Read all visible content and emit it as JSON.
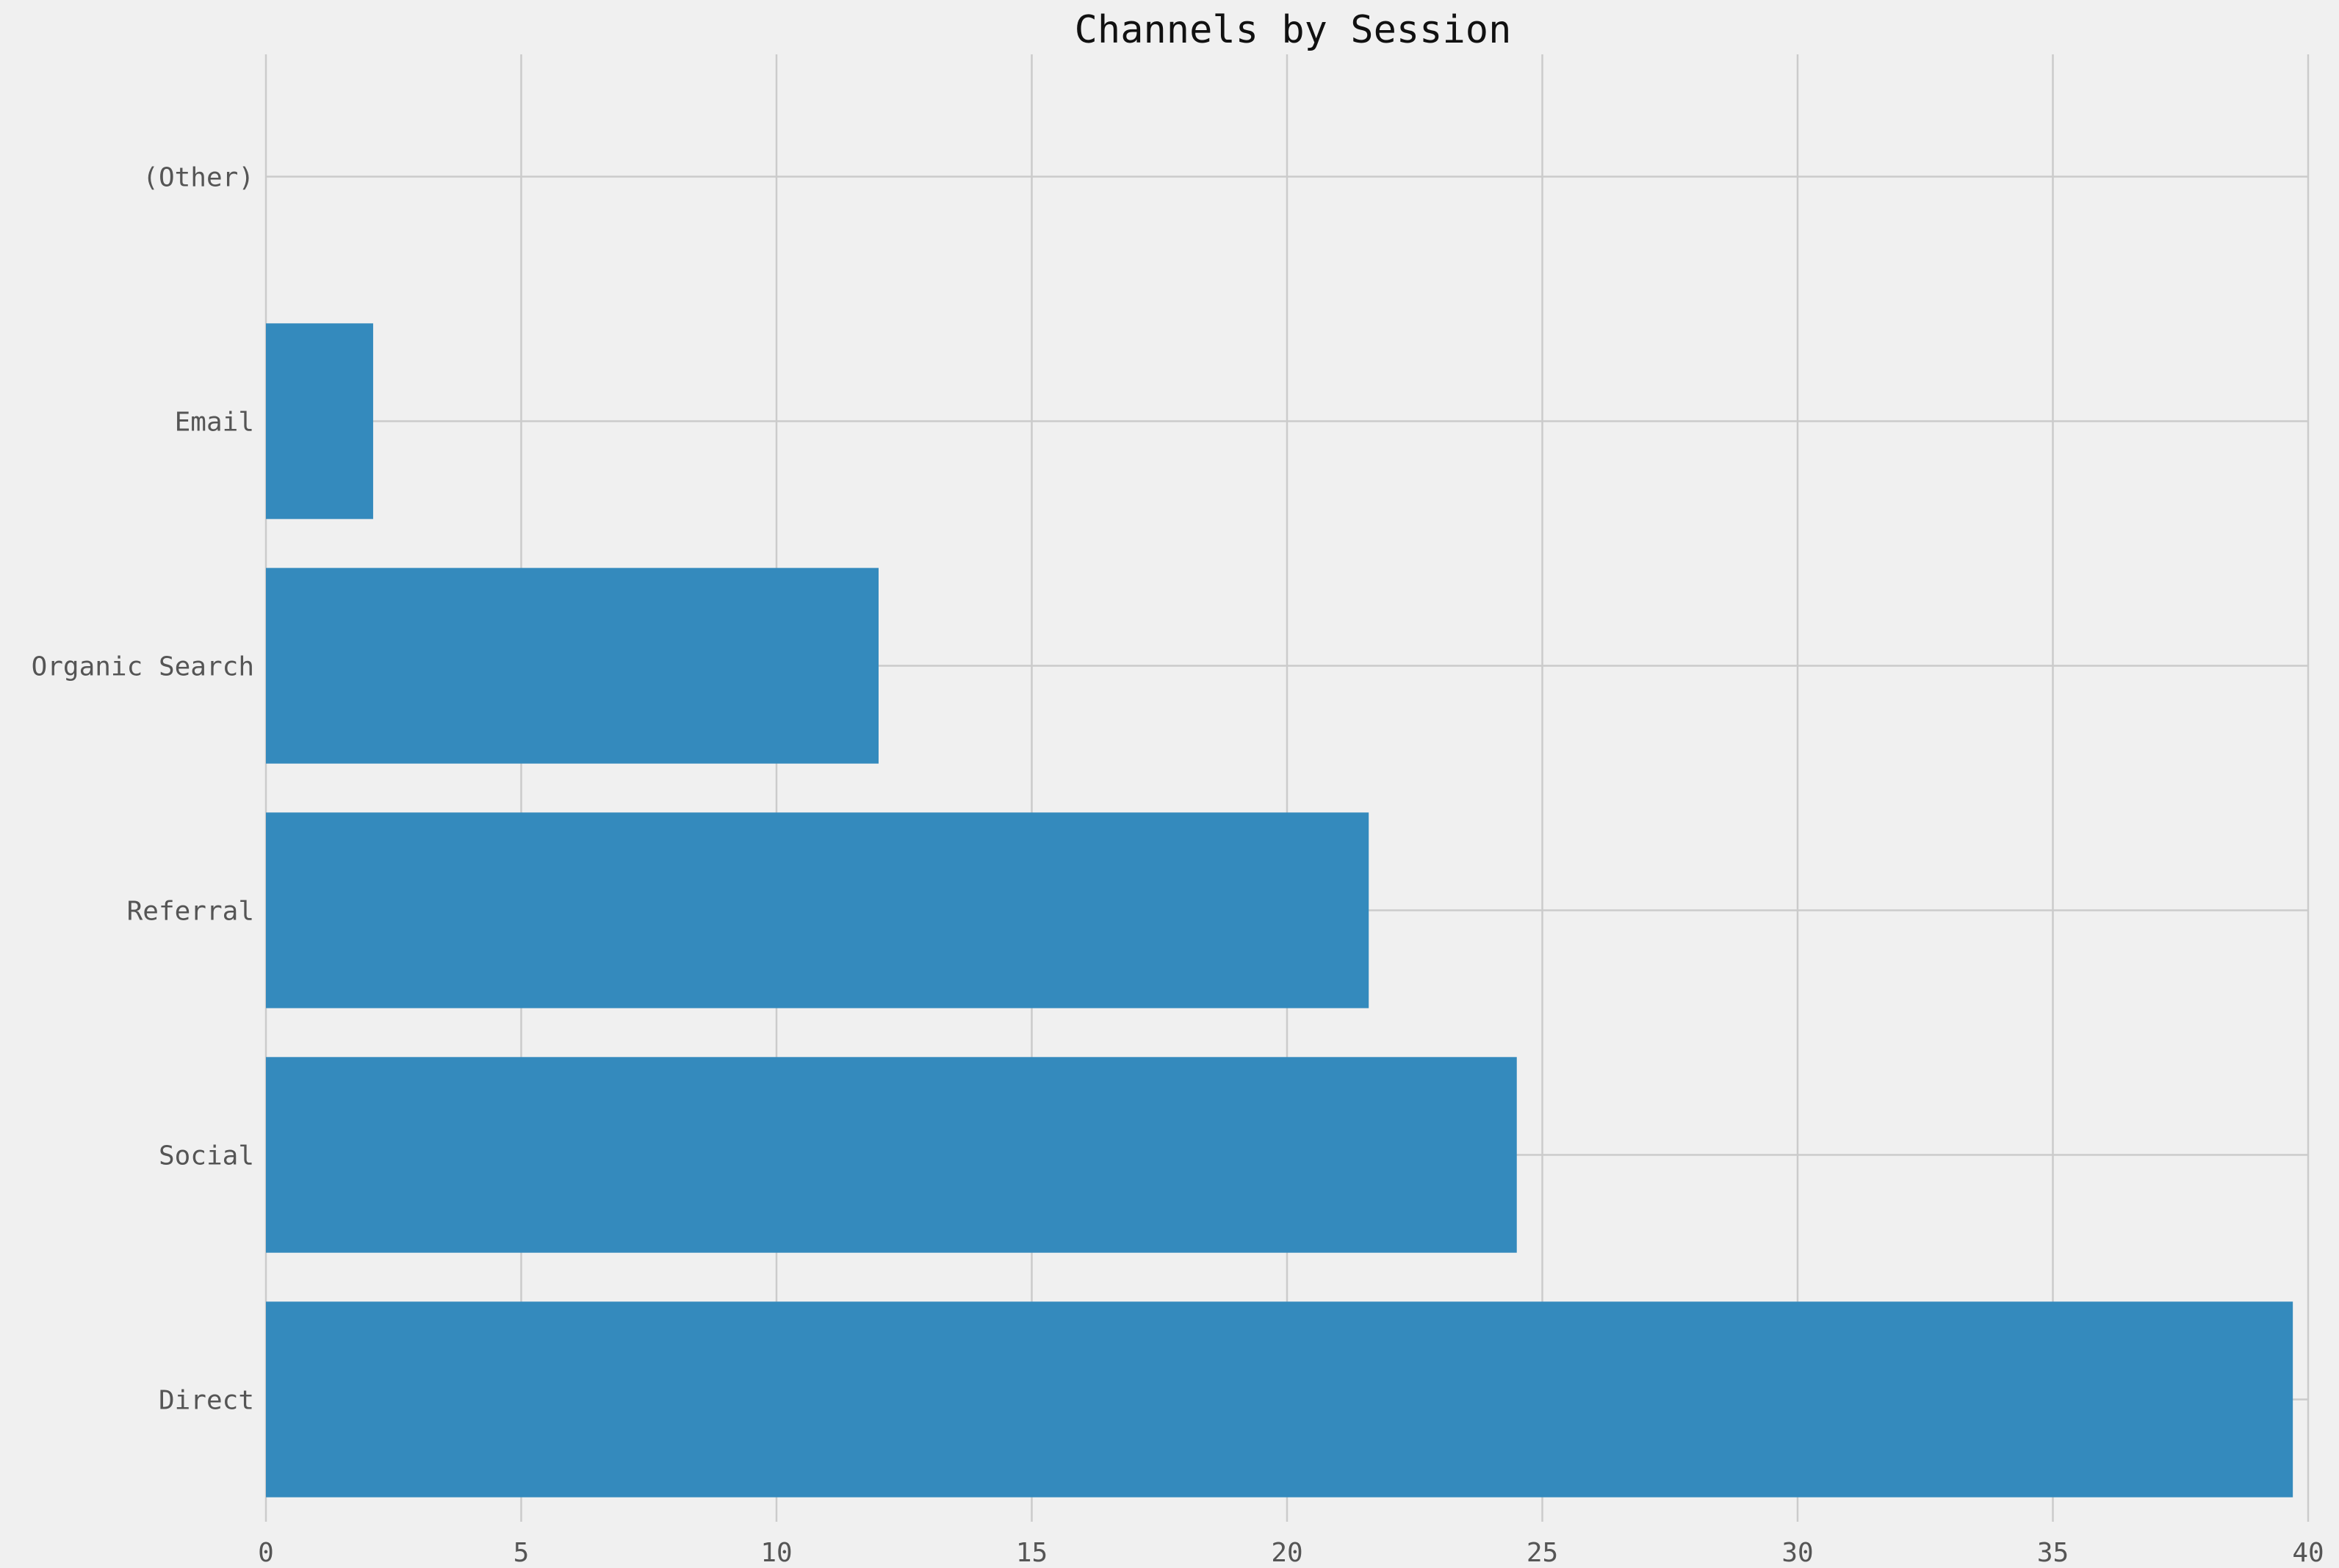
{
  "chart_data": {
    "type": "bar",
    "orientation": "horizontal",
    "title": "Channels by Session",
    "xlabel": "",
    "ylabel": "",
    "categories": [
      "Direct",
      "Social",
      "Referral",
      "Organic Search",
      "Email",
      "(Other)"
    ],
    "values": [
      39.7,
      24.5,
      21.6,
      12.0,
      2.1,
      0.0
    ],
    "xlim": [
      0,
      40
    ],
    "xticks": [
      0,
      5,
      10,
      15,
      20,
      25,
      30,
      35,
      40
    ],
    "grid": true,
    "legend": "none",
    "colors": {
      "bar": "#348abd",
      "background": "#f0f0f0",
      "grid": "#cbcbcb",
      "tick_text": "#555555",
      "title_text": "#111111"
    }
  }
}
